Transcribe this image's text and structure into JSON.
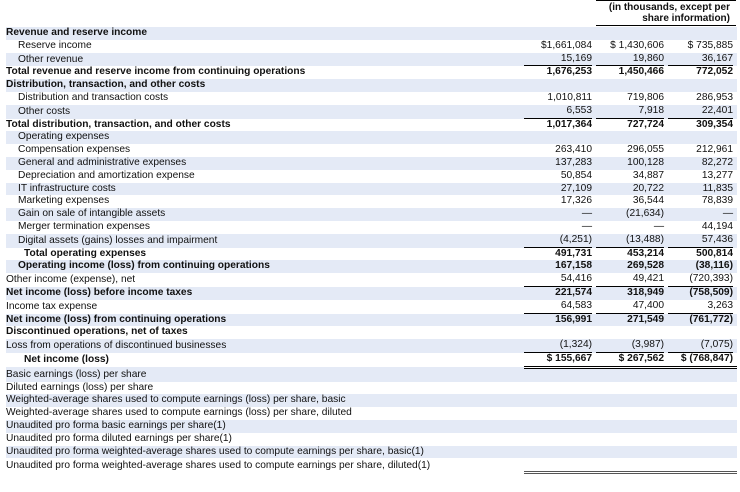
{
  "header": {
    "line1": "(in thousands, except per",
    "line2": "share information)"
  },
  "rows": [
    {
      "label": "Revenue and reserve income",
      "bold": true,
      "indent": 0,
      "v": [
        "",
        "",
        ""
      ]
    },
    {
      "label": "Reserve income",
      "indent": 1,
      "v": [
        "$1,661,084",
        "$ 1,430,606",
        "$ 735,885"
      ]
    },
    {
      "label": "Other revenue",
      "indent": 1,
      "underline": true,
      "v": [
        "15,169",
        "19,860",
        "36,167"
      ]
    },
    {
      "label": "Total revenue and reserve income from continuing operations",
      "bold": true,
      "indent": 0,
      "v": [
        "1,676,253",
        "1,450,466",
        "772,052"
      ]
    },
    {
      "label": "Distribution, transaction, and other costs",
      "bold": true,
      "indent": 0,
      "v": [
        "",
        "",
        ""
      ]
    },
    {
      "label": "Distribution and transaction costs",
      "indent": 1,
      "v": [
        "1,010,811",
        "719,806",
        "286,953"
      ]
    },
    {
      "label": "Other costs",
      "indent": 1,
      "underline": true,
      "v": [
        "6,553",
        "7,918",
        "22,401"
      ]
    },
    {
      "label": "Total distribution, transaction, and other costs",
      "bold": true,
      "indent": 0,
      "v": [
        "1,017,364",
        "727,724",
        "309,354"
      ]
    },
    {
      "label": "Operating expenses",
      "indent": 1,
      "v": [
        "",
        "",
        ""
      ]
    },
    {
      "label": "Compensation expenses",
      "indent": 1,
      "v": [
        "263,410",
        "296,055",
        "212,961"
      ]
    },
    {
      "label": "General and administrative expenses",
      "indent": 1,
      "v": [
        "137,283",
        "100,128",
        "82,272"
      ]
    },
    {
      "label": "Depreciation and amortization expense",
      "indent": 1,
      "v": [
        "50,854",
        "34,887",
        "13,277"
      ]
    },
    {
      "label": "IT infrastructure costs",
      "indent": 1,
      "v": [
        "27,109",
        "20,722",
        "11,835"
      ]
    },
    {
      "label": "Marketing expenses",
      "indent": 1,
      "v": [
        "17,326",
        "36,544",
        "78,839"
      ]
    },
    {
      "label": "Gain on sale of intangible assets",
      "indent": 1,
      "v": [
        "—",
        "(21,634)",
        "—"
      ]
    },
    {
      "label": "Merger termination expenses",
      "indent": 1,
      "v": [
        "—",
        "—",
        "44,194"
      ]
    },
    {
      "label": "Digital assets (gains) losses and impairment",
      "indent": 1,
      "underline": true,
      "v": [
        "(4,251)",
        "(13,488)",
        "57,436"
      ]
    },
    {
      "label": "Total operating expenses",
      "bold": true,
      "indent": 2,
      "v": [
        "491,731",
        "453,214",
        "500,814"
      ]
    },
    {
      "label": "Operating income (loss) from continuing operations",
      "bold": true,
      "indent": 1,
      "v": [
        "167,158",
        "269,528",
        "(38,116)"
      ]
    },
    {
      "label": "Other income (expense), net",
      "indent": 0,
      "underline": true,
      "v": [
        "54,416",
        "49,421",
        "(720,393)"
      ]
    },
    {
      "label": "Net income (loss) before income taxes",
      "bold": true,
      "indent": 0,
      "v": [
        "221,574",
        "318,949",
        "(758,509)"
      ]
    },
    {
      "label": "Income tax expense",
      "indent": 0,
      "underline": true,
      "v": [
        "64,583",
        "47,400",
        "3,263"
      ]
    },
    {
      "label": "Net income (loss) from continuing operations",
      "bold": true,
      "indent": 0,
      "v": [
        "156,991",
        "271,549",
        "(761,772)"
      ]
    },
    {
      "label": "Discontinued operations, net of taxes",
      "bold": true,
      "indent": 0,
      "v": [
        "",
        "",
        ""
      ]
    },
    {
      "label": "Loss from operations of discontinued businesses",
      "indent": 0,
      "underline": true,
      "v": [
        "(1,324)",
        "(3,987)",
        "(7,075)"
      ]
    },
    {
      "label": "Net income (loss)",
      "bold": true,
      "indent": 2,
      "double": true,
      "v": [
        "$ 155,667",
        "$ 267,562",
        "$ (768,847)"
      ]
    },
    {
      "label": "Basic earnings (loss) per share",
      "indent": 0,
      "v": [
        "",
        "",
        ""
      ]
    },
    {
      "label": "Diluted earnings (loss) per share",
      "indent": 0,
      "v": [
        "",
        "",
        ""
      ]
    },
    {
      "label": "Weighted-average shares used to compute earnings (loss) per share, basic",
      "indent": 0,
      "v": [
        "",
        "",
        ""
      ]
    },
    {
      "label": "Weighted-average shares used to compute earnings (loss) per share, diluted",
      "indent": 0,
      "v": [
        "",
        "",
        ""
      ]
    },
    {
      "label": "Unaudited pro forma basic earnings per share(1)",
      "indent": 0,
      "v": [
        "",
        "",
        ""
      ]
    },
    {
      "label": "Unaudited pro forma diluted earnings per share(1)",
      "indent": 0,
      "v": [
        "",
        "",
        ""
      ]
    },
    {
      "label": "Unaudited pro forma weighted-average shares used to compute earnings per share, basic(1)",
      "indent": 0,
      "v": [
        "",
        "",
        ""
      ]
    },
    {
      "label": "Unaudited pro forma weighted-average shares used to compute earnings per share, diluted(1)",
      "indent": 0,
      "tail": true,
      "v": [
        "",
        "",
        ""
      ]
    }
  ]
}
